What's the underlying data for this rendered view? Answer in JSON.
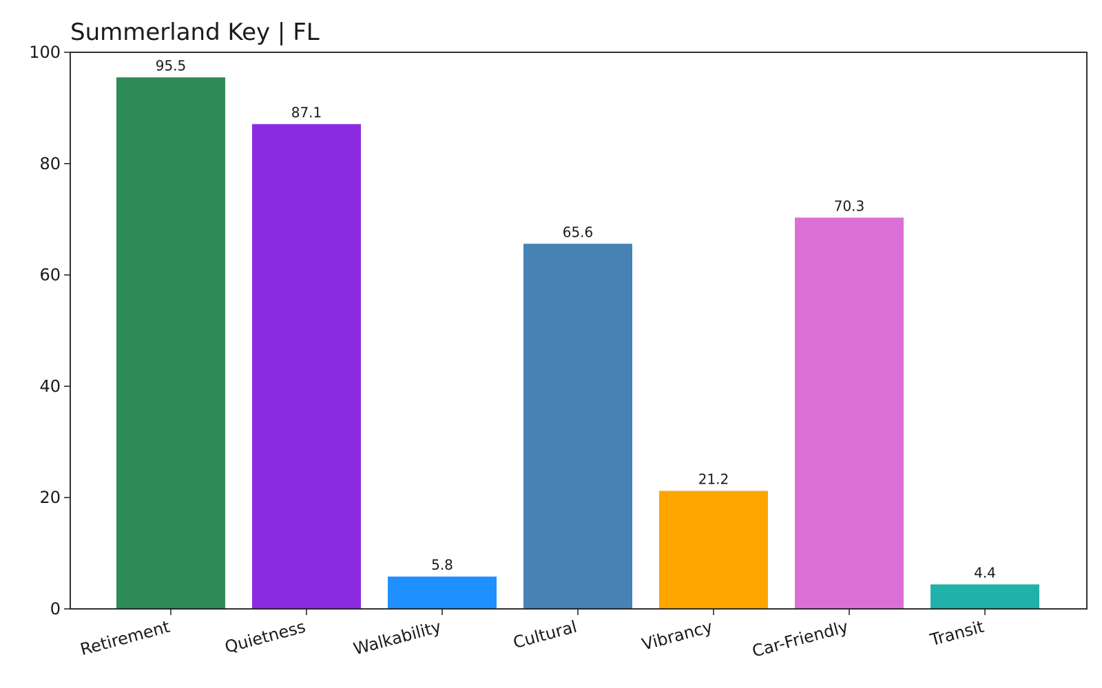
{
  "chart_data": {
    "type": "bar",
    "title": "Summerland Key | FL",
    "xlabel": "",
    "ylabel": "",
    "ylim": [
      0,
      100
    ],
    "yticks": [
      0,
      20,
      40,
      60,
      80,
      100
    ],
    "grid": false,
    "legend": "none",
    "categories": [
      "Retirement",
      "Quietness",
      "Walkability",
      "Cultural",
      "Vibrancy",
      "Car-Friendly",
      "Transit"
    ],
    "values": [
      95.5,
      87.1,
      5.8,
      65.6,
      21.2,
      70.3,
      4.4
    ],
    "value_labels": [
      "95.5",
      "87.1",
      "5.8",
      "65.6",
      "21.2",
      "70.3",
      "4.4"
    ],
    "colors": [
      "#2e8b57",
      "#8a2be2",
      "#1e90ff",
      "#4682b4",
      "#ffa500",
      "#da70d6",
      "#20b2aa"
    ]
  }
}
